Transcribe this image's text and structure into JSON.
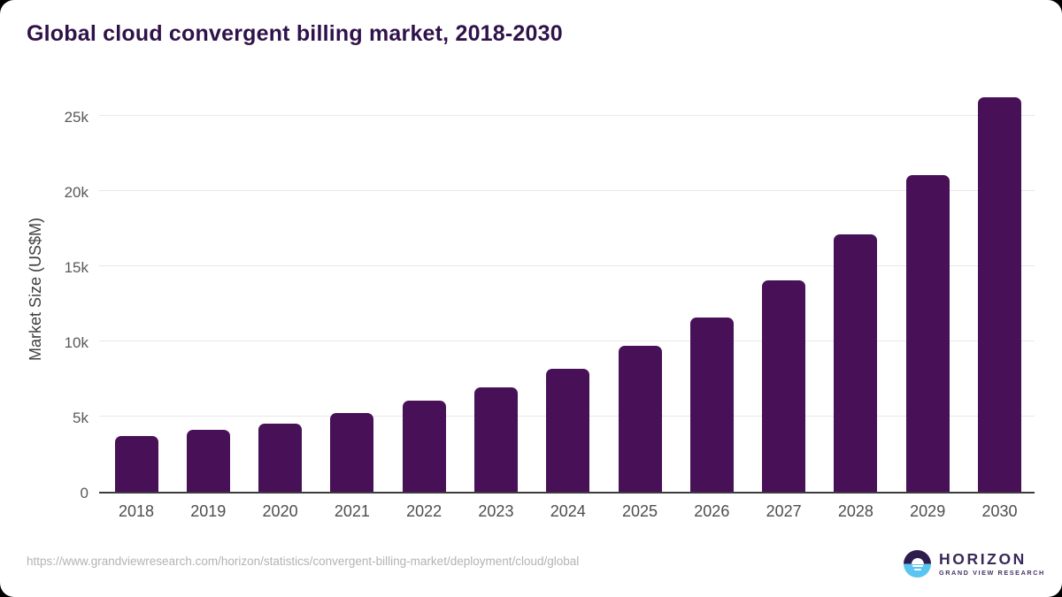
{
  "title": "Global cloud convergent billing market, 2018-2030",
  "source_url": "https://www.grandviewresearch.com/horizon/statistics/convergent-billing-market/deployment/cloud/global",
  "logo": {
    "brand": "HORIZON",
    "subtitle": "GRAND VIEW RESEARCH"
  },
  "colors": {
    "bar": "#471057",
    "title": "#30124a",
    "gridline": "#e8e8e8",
    "axis_line": "#3c3c3c",
    "tick_text": "#595959",
    "xlabel_text": "#4d4d4d",
    "source_text": "#b3b3b3",
    "logo_purple": "#2f1c4e",
    "logo_blue": "#5bc5f2"
  },
  "chart_data": {
    "type": "bar",
    "title": "Global cloud convergent billing market, 2018-2030",
    "categories": [
      "2018",
      "2019",
      "2020",
      "2021",
      "2022",
      "2023",
      "2024",
      "2025",
      "2026",
      "2027",
      "2028",
      "2029",
      "2030"
    ],
    "values": [
      3700,
      4100,
      4550,
      5250,
      6050,
      6950,
      8150,
      9700,
      11600,
      14050,
      17100,
      21050,
      26250
    ],
    "xlabel": "",
    "ylabel": "Market Size (US$M)",
    "ylim": [
      0,
      26500
    ],
    "yticks": [
      {
        "label": "0",
        "value": 0
      },
      {
        "label": "5k",
        "value": 5000
      },
      {
        "label": "10k",
        "value": 10000
      },
      {
        "label": "15k",
        "value": 15000
      },
      {
        "label": "20k",
        "value": 20000
      },
      {
        "label": "25k",
        "value": 25000
      }
    ],
    "grid": true,
    "legend": "none",
    "bar_color": "#471057"
  }
}
